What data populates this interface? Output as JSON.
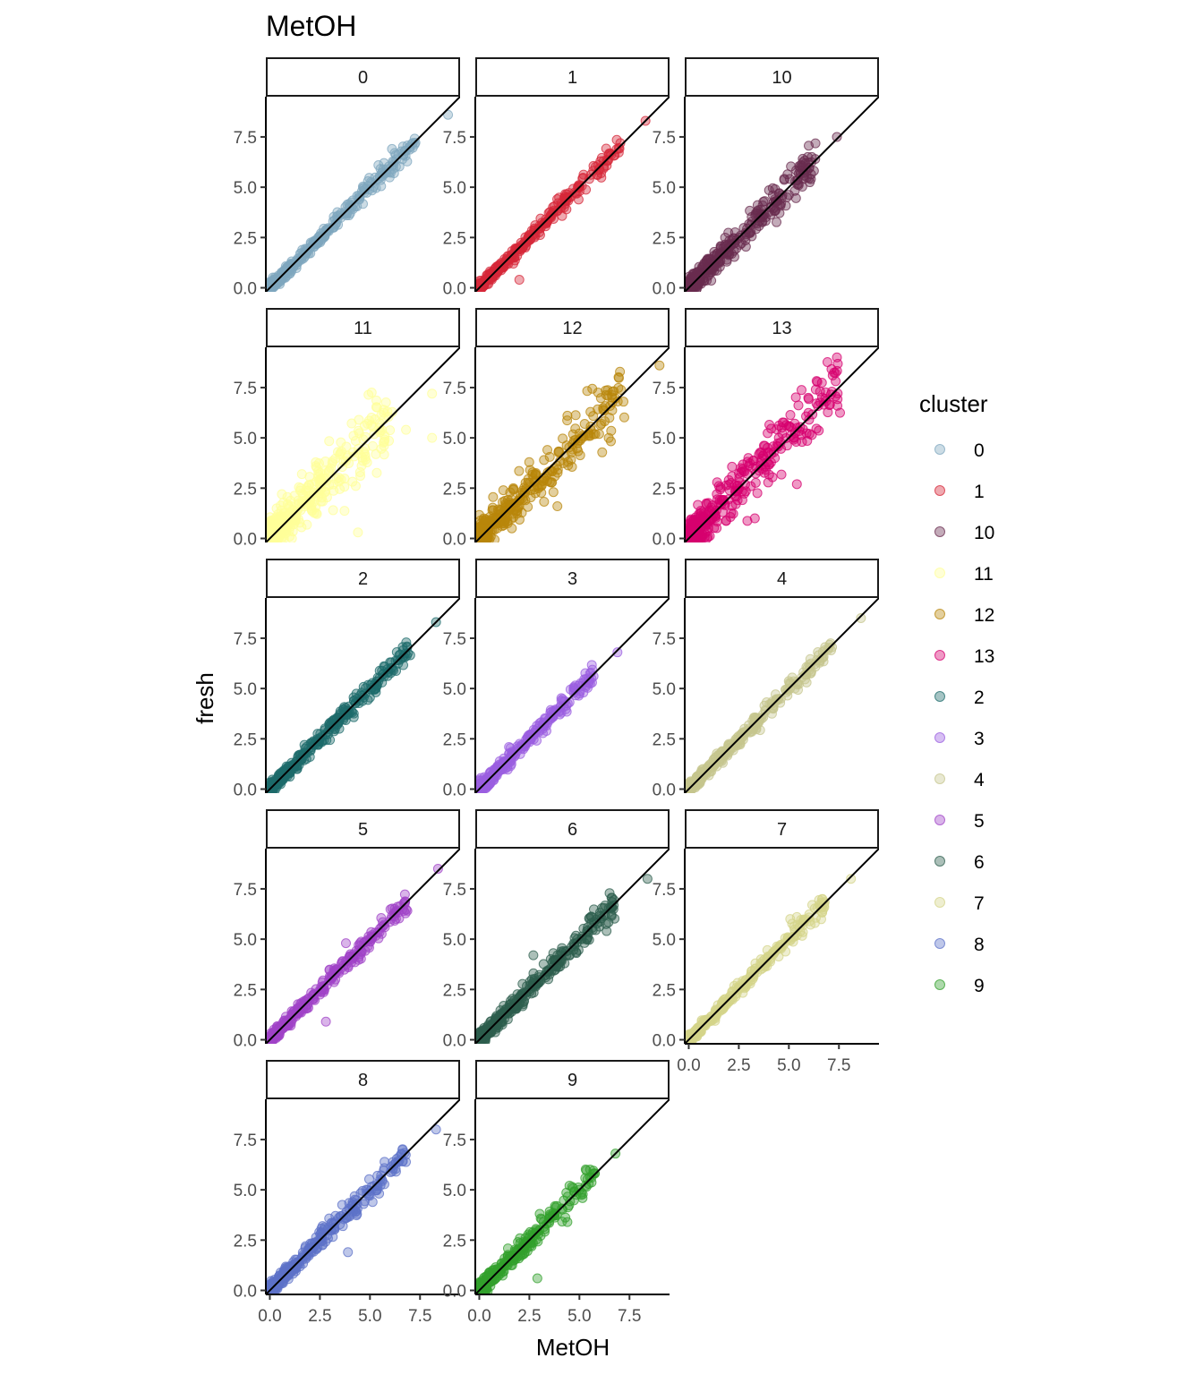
{
  "chart_data": {
    "type": "scatter",
    "title": "MetOH",
    "xlabel": "MetOH",
    "ylabel": "fresh",
    "xlim": [
      -0.2,
      9.5
    ],
    "ylim": [
      -0.2,
      9.5
    ],
    "x_ticks": [
      "0.0",
      "2.5",
      "5.0",
      "7.5"
    ],
    "y_ticks": [
      "0.0",
      "2.5",
      "5.0",
      "7.5"
    ],
    "reference_line": "y = x",
    "legend": {
      "title": "cluster",
      "placement": "right"
    },
    "panels": [
      {
        "name": "0",
        "color": "#7FA7BF",
        "spread": 0.18,
        "ymax": 8.6,
        "x": [
          8.9,
          6.1,
          5.7,
          4.9,
          4.6,
          3.5,
          3.2,
          2.7,
          2.0,
          1.6,
          1.0,
          0.5
        ],
        "y": [
          8.6,
          6.9,
          6.2,
          5.3,
          4.8,
          3.6,
          3.0,
          2.5,
          2.0,
          1.5,
          0.7,
          0.3
        ]
      },
      {
        "name": "1",
        "color": "#D62839",
        "spread": 0.18,
        "ymax": 8.3,
        "x": [
          8.3,
          6.4,
          5.9,
          5.0,
          4.4,
          3.4,
          2.8,
          2.3,
          1.7,
          1.2,
          0.8,
          2.0
        ],
        "y": [
          8.3,
          6.3,
          5.6,
          4.8,
          4.5,
          3.3,
          2.6,
          2.0,
          1.2,
          1.0,
          0.6,
          0.4
        ]
      },
      {
        "name": "10",
        "color": "#6A2C4F",
        "spread": 0.38,
        "ymax": 7.5,
        "x": [
          7.4,
          6.1,
          5.6,
          4.9,
          4.2,
          3.6,
          3.1,
          2.4,
          1.9,
          1.3,
          0.8
        ],
        "y": [
          7.5,
          5.4,
          6.1,
          4.5,
          4.6,
          3.5,
          2.8,
          2.4,
          1.3,
          1.1,
          0.7
        ]
      },
      {
        "name": "11",
        "color": "#FFFF99",
        "spread": 0.75,
        "ymax": 7.2,
        "x": [
          8.1,
          8.1,
          6.8,
          5.7,
          4.7,
          3.4,
          2.3,
          1.6,
          1.3,
          0.6,
          4.4
        ],
        "y": [
          5.0,
          7.2,
          5.4,
          4.6,
          4.3,
          4.3,
          3.6,
          3.2,
          1.1,
          2.2,
          0.3
        ]
      },
      {
        "name": "12",
        "color": "#B8860B",
        "spread": 0.6,
        "ymax": 8.6,
        "x": [
          9.0,
          7.2,
          6.1,
          4.4,
          4.8,
          3.4,
          2.8,
          2.3,
          1.7,
          1.2,
          0.7,
          3.9
        ],
        "y": [
          8.6,
          6.8,
          5.7,
          6.1,
          4.9,
          4.4,
          3.2,
          1.9,
          2.5,
          2.4,
          1.4,
          1.6
        ]
      },
      {
        "name": "13",
        "color": "#D6006F",
        "spread": 0.65,
        "ymax": 9.0,
        "x": [
          7.4,
          5.4,
          4.5,
          3.8,
          3.1,
          2.6,
          2.0,
          1.4,
          0.9,
          0.5,
          3.3
        ],
        "y": [
          9.0,
          2.7,
          5.0,
          4.6,
          2.6,
          3.5,
          2.9,
          2.2,
          1.7,
          1.2,
          1.0
        ]
      },
      {
        "name": "2",
        "color": "#1E6B6B",
        "spread": 0.22,
        "ymax": 8.3,
        "x": [
          8.3,
          6.0,
          5.6,
          4.6,
          4.2,
          3.0,
          2.6,
          2.0,
          1.5,
          1.0,
          0.6
        ],
        "y": [
          8.3,
          6.3,
          5.3,
          4.8,
          4.4,
          3.3,
          2.4,
          1.6,
          1.7,
          0.8,
          0.6
        ]
      },
      {
        "name": "3",
        "color": "#9B5FE0",
        "spread": 0.22,
        "ymax": 6.8,
        "x": [
          6.9,
          5.6,
          5.2,
          4.1,
          3.6,
          2.9,
          2.4,
          1.9,
          1.4,
          0.9,
          0.5
        ],
        "y": [
          6.8,
          5.5,
          4.8,
          4.4,
          3.7,
          3.0,
          2.5,
          1.9,
          1.1,
          1.1,
          0.5
        ]
      },
      {
        "name": "4",
        "color": "#C5C58E",
        "spread": 0.2,
        "ymax": 8.5,
        "x": [
          8.6,
          6.4,
          6.0,
          5.3,
          4.6,
          3.7,
          3.0,
          2.5,
          1.7,
          1.2,
          0.6
        ],
        "y": [
          8.5,
          6.4,
          5.9,
          5.0,
          4.5,
          3.7,
          3.0,
          2.4,
          1.3,
          1.2,
          0.6
        ]
      },
      {
        "name": "5",
        "color": "#A043C7",
        "spread": 0.2,
        "ymax": 8.5,
        "x": [
          8.4,
          6.7,
          6.2,
          3.8,
          5.1,
          4.1,
          3.2,
          2.6,
          1.9,
          1.4,
          2.8
        ],
        "y": [
          8.5,
          6.8,
          6.3,
          4.8,
          5.2,
          4.1,
          3.2,
          2.5,
          2.0,
          1.4,
          0.9
        ]
      },
      {
        "name": "6",
        "color": "#2E5E4E",
        "spread": 0.25,
        "ymax": 8.0,
        "x": [
          8.4,
          5.6,
          4.9,
          2.7,
          4.1,
          3.5,
          2.6,
          1.8,
          1.4,
          0.9,
          0.4
        ],
        "y": [
          8.0,
          5.8,
          5.0,
          4.2,
          3.9,
          3.5,
          2.3,
          1.8,
          1.4,
          0.8,
          0.4
        ]
      },
      {
        "name": "7",
        "color": "#D4D48A",
        "spread": 0.18,
        "ymax": 8.0,
        "x": [
          8.1,
          6.3,
          5.4,
          4.6,
          3.9,
          3.2,
          2.6,
          2.0,
          1.4,
          0.8,
          0.3
        ],
        "y": [
          8.0,
          5.8,
          6.1,
          4.6,
          4.0,
          3.2,
          2.6,
          2.0,
          1.3,
          0.8,
          0.3
        ]
      },
      {
        "name": "8",
        "color": "#5D72C8",
        "spread": 0.25,
        "ymax": 8.0,
        "x": [
          8.3,
          6.3,
          5.6,
          4.9,
          4.1,
          3.9,
          3.2,
          2.6,
          1.9,
          1.4,
          0.7
        ],
        "y": [
          8.0,
          5.9,
          5.5,
          5.0,
          4.2,
          1.9,
          3.1,
          2.6,
          2.0,
          1.4,
          0.9
        ]
      },
      {
        "name": "9",
        "color": "#33A02C",
        "spread": 0.28,
        "ymax": 6.8,
        "x": [
          6.8,
          5.6,
          5.0,
          4.4,
          3.7,
          3.0,
          2.4,
          1.8,
          1.3,
          0.8,
          2.9
        ],
        "y": [
          6.8,
          5.6,
          5.0,
          3.4,
          3.7,
          3.0,
          2.3,
          1.7,
          1.3,
          0.8,
          0.6
        ]
      }
    ]
  }
}
